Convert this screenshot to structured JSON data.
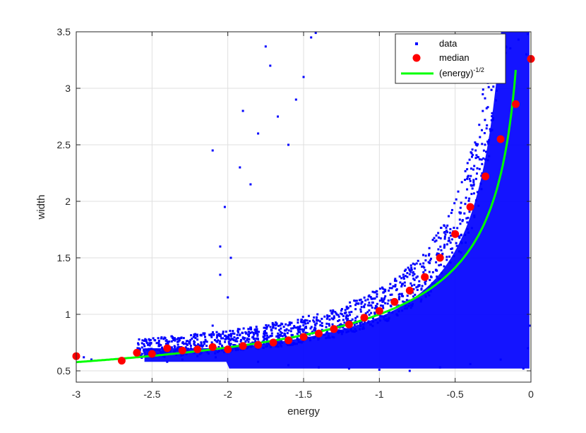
{
  "chart_data": {
    "type": "scatter",
    "title": "",
    "xlabel": "energy",
    "ylabel": "width",
    "xlim": [
      -3,
      0
    ],
    "ylim": [
      0.4,
      3.5
    ],
    "grid": true,
    "legend_position": "top-right",
    "x_ticks": [
      -3,
      -2.5,
      -2,
      -1.5,
      -1,
      -0.5,
      0
    ],
    "x_tick_labels": [
      "-3",
      "-2.5",
      "-2",
      "-1.5",
      "-1",
      "-0.5",
      "0"
    ],
    "y_ticks": [
      0.5,
      1,
      1.5,
      2,
      2.5,
      3,
      3.5
    ],
    "y_tick_labels": [
      "0.5",
      "1",
      "1.5",
      "2",
      "2.5",
      "3",
      "3.5"
    ],
    "series": [
      {
        "name": "data",
        "kind": "scatter-dense",
        "color": "#0000ff",
        "points": [
          [
            -2.95,
            0.62
          ],
          [
            -2.9,
            0.6
          ],
          [
            -2.7,
            0.58
          ],
          [
            -2.6,
            0.63
          ],
          [
            -2.55,
            0.66
          ],
          [
            -2.5,
            0.62
          ],
          [
            -2.45,
            0.68
          ],
          [
            -2.4,
            0.66
          ],
          [
            -2.4,
            0.58
          ],
          [
            -2.35,
            0.71
          ],
          [
            -2.3,
            0.66
          ],
          [
            -2.3,
            0.6
          ],
          [
            -2.25,
            0.74
          ],
          [
            -2.2,
            0.7
          ],
          [
            -2.2,
            0.63
          ],
          [
            -2.15,
            0.8
          ],
          [
            -2.15,
            0.68
          ],
          [
            -2.1,
            0.9
          ],
          [
            -2.1,
            0.73
          ],
          [
            -2.08,
            0.62
          ],
          [
            -2.05,
            1.6
          ],
          [
            -2.02,
            1.95
          ],
          [
            -2.0,
            1.15
          ],
          [
            -2.05,
            1.35
          ],
          [
            -2.1,
            2.45
          ],
          [
            -1.98,
            1.5
          ],
          [
            -1.92,
            2.3
          ],
          [
            -1.9,
            2.8
          ],
          [
            -1.85,
            2.15
          ],
          [
            -1.8,
            2.6
          ],
          [
            -1.75,
            3.37
          ],
          [
            -1.72,
            3.2
          ],
          [
            -1.67,
            2.75
          ],
          [
            -1.6,
            2.5
          ],
          [
            -1.55,
            2.9
          ],
          [
            -1.5,
            3.1
          ],
          [
            -1.45,
            3.45
          ],
          [
            -1.42,
            3.49
          ],
          [
            -1.8,
            0.58
          ],
          [
            -1.6,
            0.55
          ],
          [
            -1.4,
            0.53
          ],
          [
            -1.2,
            0.52
          ],
          [
            -1.0,
            0.51
          ],
          [
            -0.8,
            0.5
          ],
          [
            -0.6,
            0.53
          ],
          [
            -0.4,
            0.56
          ],
          [
            -0.2,
            0.6
          ],
          [
            -0.05,
            0.52
          ],
          [
            -0.02,
            0.7
          ],
          [
            -0.01,
            0.9
          ],
          [
            -0.02,
            3.48
          ],
          [
            -0.03,
            3.3
          ],
          [
            -0.2,
            3.46
          ]
        ]
      },
      {
        "name": "median",
        "kind": "scatter",
        "color": "#ff0000",
        "points": [
          [
            -3.0,
            0.63
          ],
          [
            -2.7,
            0.59
          ],
          [
            -2.6,
            0.66
          ],
          [
            -2.5,
            0.65
          ],
          [
            -2.4,
            0.7
          ],
          [
            -2.3,
            0.68
          ],
          [
            -2.2,
            0.69
          ],
          [
            -2.1,
            0.71
          ],
          [
            -2.0,
            0.69
          ],
          [
            -1.9,
            0.72
          ],
          [
            -1.8,
            0.73
          ],
          [
            -1.7,
            0.75
          ],
          [
            -1.6,
            0.77
          ],
          [
            -1.5,
            0.8
          ],
          [
            -1.4,
            0.83
          ],
          [
            -1.3,
            0.87
          ],
          [
            -1.2,
            0.91
          ],
          [
            -1.1,
            0.97
          ],
          [
            -1.0,
            1.03
          ],
          [
            -0.9,
            1.11
          ],
          [
            -0.8,
            1.21
          ],
          [
            -0.7,
            1.33
          ],
          [
            -0.6,
            1.5
          ],
          [
            -0.5,
            1.71
          ],
          [
            -0.4,
            1.95
          ],
          [
            -0.3,
            2.22
          ],
          [
            -0.2,
            2.55
          ],
          [
            -0.1,
            2.86
          ],
          [
            0.0,
            3.26
          ]
        ]
      },
      {
        "name": "(energy)",
        "name_superscript": "-1/2",
        "kind": "line",
        "color": "#00ff00",
        "function": "(-x)^(-1/2)",
        "x_range": [
          -3,
          -0.1
        ]
      }
    ]
  }
}
